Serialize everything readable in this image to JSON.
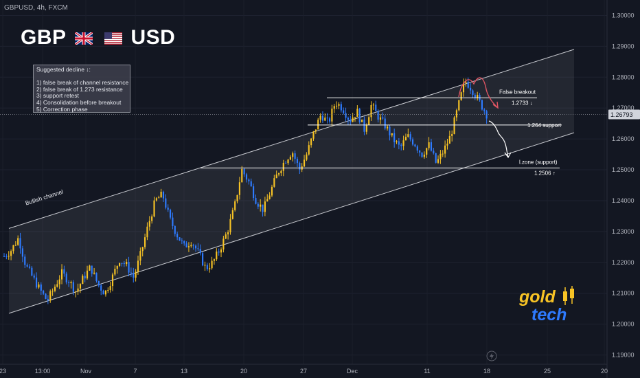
{
  "header": {
    "symbol_info": "GBPUSD, 4h, FXCM",
    "title_left": "GBP",
    "title_right": "USD"
  },
  "flags": [
    "uk-flag",
    "us-flag"
  ],
  "note_box": {
    "lines": [
      "Suggested decline ↓:",
      "",
      "1) false break of channel resistance",
      "2) false break of 1.273 resistance",
      "3) support retest",
      "4) Consolidation before breakout",
      "5) Correction phase"
    ]
  },
  "logo": {
    "word_top": "gold",
    "word_bottom": "tech"
  },
  "colors": {
    "background": "#131722",
    "bull": "#f7c325",
    "bear": "#2e7bff",
    "channel_line": "#c8cad0",
    "level_line": "#ffffff",
    "red_arrow": "#e05563",
    "white_arrow": "#ffffff",
    "current_price_bg": "#d1d4dc"
  },
  "chart_data": {
    "type": "candlestick",
    "title": "",
    "xlabel": "",
    "ylabel": "",
    "ylim": [
      1.19,
      1.305
    ],
    "grid": true,
    "price_ticks": [
      "1.30000",
      "1.29000",
      "1.28000",
      "1.27000",
      "1.26000",
      "1.25000",
      "1.24000",
      "1.23000",
      "1.22000",
      "1.21000",
      "1.20000",
      "1.19000"
    ],
    "price_tick_values": [
      1.3,
      1.29,
      1.28,
      1.27,
      1.26,
      1.25,
      1.24,
      1.23,
      1.22,
      1.21,
      1.2,
      1.19
    ],
    "time_ticks": [
      "23",
      "13:00",
      "Nov",
      "7",
      "13",
      "20",
      "27",
      "Dec",
      "11",
      "18",
      "25",
      "20"
    ],
    "current_price": "1.26793",
    "current_price_value": 1.26793,
    "close_path": [
      1.222,
      1.224,
      1.228,
      1.219,
      1.215,
      1.211,
      1.2075,
      1.212,
      1.2165,
      1.214,
      1.2105,
      1.215,
      1.2185,
      1.213,
      1.21,
      1.215,
      1.221,
      1.219,
      1.215,
      1.223,
      1.232,
      1.24,
      1.242,
      1.234,
      1.229,
      1.225,
      1.227,
      1.223,
      1.218,
      1.22,
      1.2245,
      1.23,
      1.238,
      1.25,
      1.246,
      1.24,
      1.237,
      1.243,
      1.249,
      1.253,
      1.256,
      1.25,
      1.255,
      1.262,
      1.268,
      1.265,
      1.272,
      1.27,
      1.266,
      1.269,
      1.263,
      1.271,
      1.267,
      1.264,
      1.26,
      1.257,
      1.261,
      1.2585,
      1.255,
      1.258,
      1.252,
      1.256,
      1.261,
      1.27,
      1.279,
      1.276,
      1.272,
      1.268
    ],
    "channel": {
      "label": "Bullish channel",
      "upper": {
        "x_index": [
          0,
          80
        ],
        "price": [
          1.231,
          1.289
        ]
      },
      "lower": {
        "x_index": [
          0,
          80
        ],
        "price": [
          1.2035,
          1.262
        ]
      }
    },
    "levels": [
      {
        "name": "false-breakout-resistance",
        "label": "False breakout",
        "value_label": "1.2733 ↓",
        "price": 1.2733
      },
      {
        "name": "support-1264",
        "label": "1.264 support",
        "price": 1.2645
      },
      {
        "name": "l-zone-support",
        "label": "l.zone (support)",
        "value_label": "1.2506 ↑",
        "price": 1.2506
      }
    ]
  }
}
